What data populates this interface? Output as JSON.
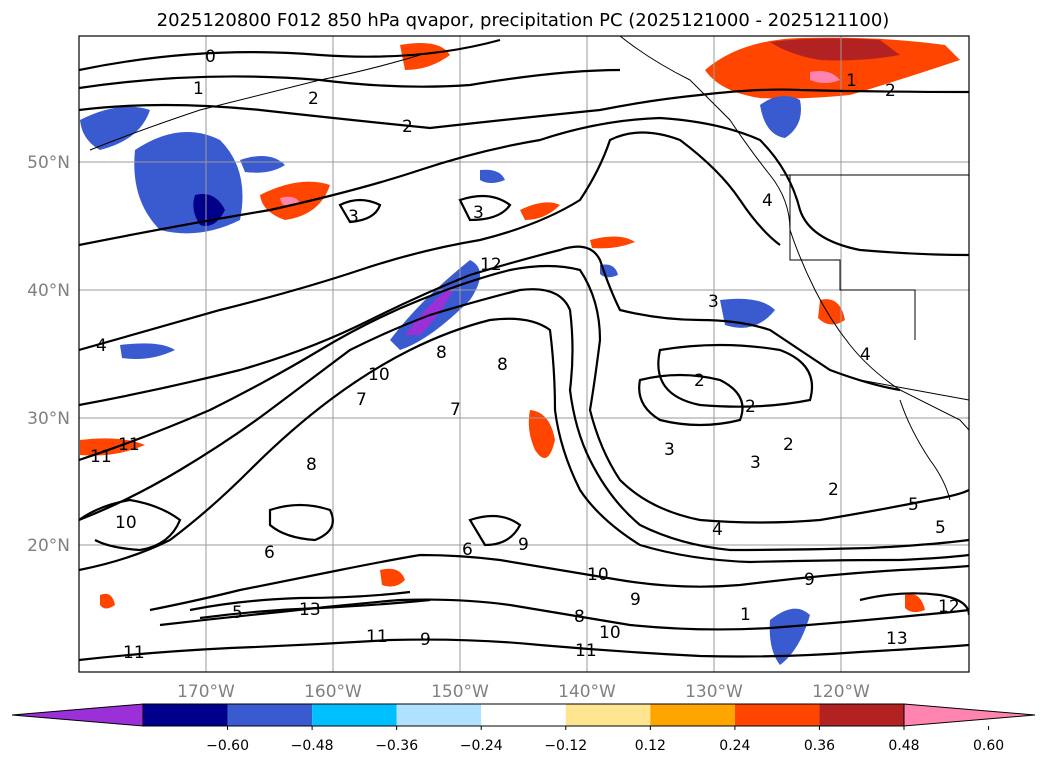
{
  "title": "2025120800 F012 850 hPa qvapor, precipitation PC (2025121000 - 2025121100)",
  "lat_labels": [
    "50°N",
    "40°N",
    "30°N",
    "20°N"
  ],
  "lon_labels": [
    "170°W",
    "160°W",
    "150°W",
    "140°W",
    "130°W",
    "120°W"
  ],
  "colorbar": {
    "ticks": [
      "−0.60",
      "−0.48",
      "−0.36",
      "−0.24",
      "−0.12",
      "0.12",
      "0.24",
      "0.36",
      "0.48",
      "0.60"
    ],
    "colors": [
      "#9b30d8",
      "#00008b",
      "#3a5bd0",
      "#00bfff",
      "#b0e2ff",
      "#ffffff",
      "#ffe58f",
      "#ffa500",
      "#ff4500",
      "#b22222",
      "#ff85b0"
    ]
  },
  "contour_labels": {
    "c1": "0",
    "c2": "1",
    "c3": "2",
    "c4": "2",
    "c5": "3",
    "c6": "3",
    "c7": "4",
    "c8": "1",
    "c9": "2",
    "c10": "3",
    "c11": "2",
    "c12": "2",
    "c13": "3",
    "c14": "2",
    "c15": "4",
    "c16": "5",
    "c17": "5",
    "c18": "12",
    "c19": "13",
    "c20": "11",
    "c21": "13",
    "c22": "11",
    "c23": "9",
    "c24": "10",
    "c25": "10",
    "c26": "8",
    "c27": "9",
    "c28": "6",
    "c29": "7",
    "c30": "8",
    "c31": "8",
    "c32": "8",
    "c33": "4",
    "c34": "11",
    "c35": "11",
    "c36": "10",
    "c37": "9",
    "c38": "10",
    "c39": "7",
    "c40": "5",
    "c41": "11",
    "c42": "12",
    "c43": "1",
    "c44": "9",
    "c45": "2",
    "c46": "4",
    "c47": "6",
    "c48": "3"
  }
}
